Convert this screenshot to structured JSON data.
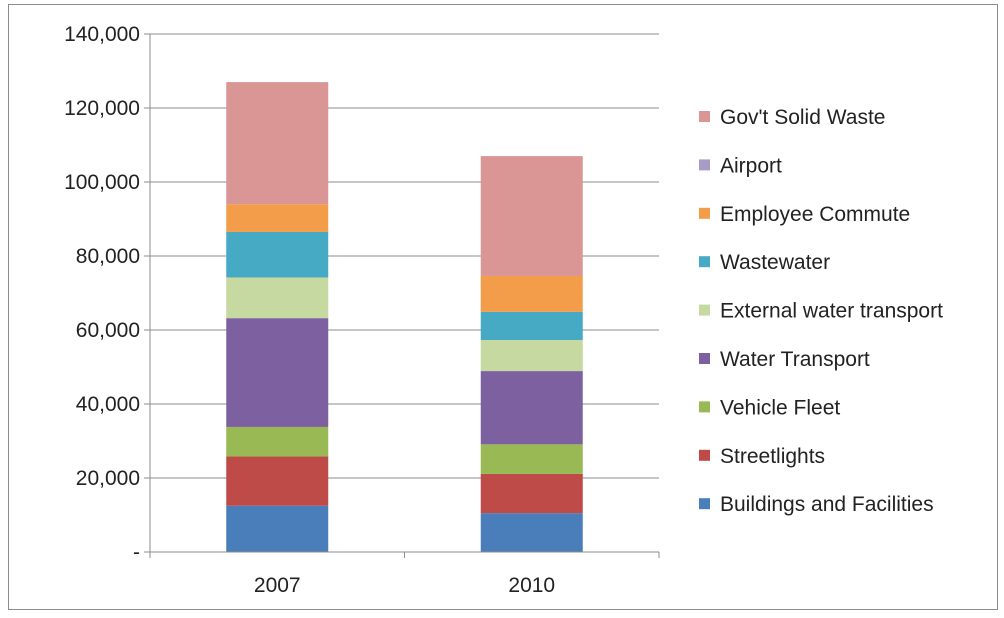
{
  "chart_data": {
    "type": "bar",
    "stacked": true,
    "title": "",
    "xlabel": "",
    "ylabel": "",
    "categories": [
      "2007",
      "2010"
    ],
    "ylim": [
      0,
      140000
    ],
    "yticks": [
      {
        "value": 0,
        "label": "-"
      },
      {
        "value": 20000,
        "label": "20,000"
      },
      {
        "value": 40000,
        "label": "40,000"
      },
      {
        "value": 60000,
        "label": "60,000"
      },
      {
        "value": 80000,
        "label": "80,000"
      },
      {
        "value": 100000,
        "label": "100,000"
      },
      {
        "value": 120000,
        "label": "120,000"
      },
      {
        "value": 140000,
        "label": "140,000"
      }
    ],
    "grid": true,
    "legend_position": "right",
    "series": [
      {
        "name": "Buildings and Facilities",
        "color": "#4a7ebb",
        "values": [
          12500,
          10500
        ]
      },
      {
        "name": "Streetlights",
        "color": "#be4b48",
        "values": [
          13300,
          10600
        ]
      },
      {
        "name": "Vehicle Fleet",
        "color": "#98b954",
        "values": [
          8000,
          8000
        ]
      },
      {
        "name": "Water Transport",
        "color": "#7d60a0",
        "values": [
          29400,
          19800
        ]
      },
      {
        "name": "External water transport",
        "color": "#c6d9a0",
        "values": [
          11000,
          8400
        ]
      },
      {
        "name": "Wastewater",
        "color": "#46aac5",
        "values": [
          12300,
          7600
        ]
      },
      {
        "name": "Employee Commute",
        "color": "#f39c4a",
        "values": [
          7500,
          9700
        ]
      },
      {
        "name": "Airport",
        "color": "#a99bc7",
        "values": [
          0,
          0
        ]
      },
      {
        "name": "Gov't Solid Waste",
        "color": "#d99694",
        "values": [
          33000,
          32400
        ]
      }
    ]
  }
}
